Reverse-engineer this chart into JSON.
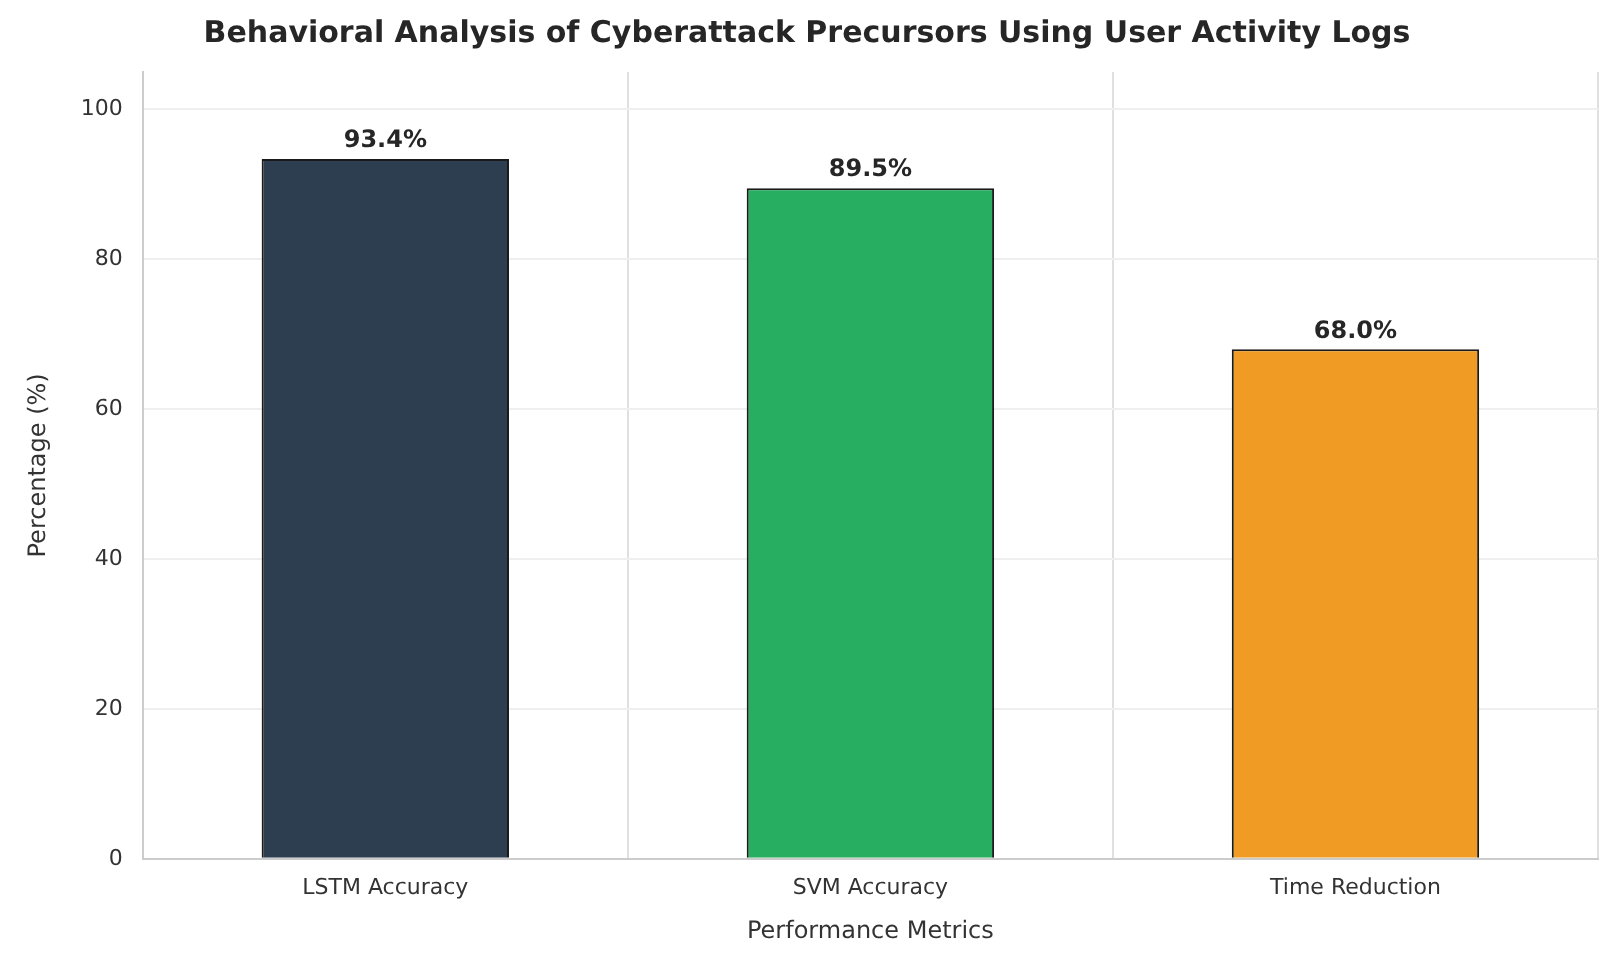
{
  "chart_data": {
    "type": "bar",
    "title": "Behavioral Analysis of Cyberattack Precursors Using User Activity Logs",
    "xlabel": "Performance Metrics",
    "ylabel": "Percentage (%)",
    "categories": [
      "LSTM Accuracy",
      "SVM Accuracy",
      "Time Reduction"
    ],
    "values": [
      93.4,
      89.5,
      68.0
    ],
    "colors": [
      "#2c3e50",
      "#27ae60",
      "#f09c24"
    ],
    "value_labels": [
      "93.4%",
      "89.5%",
      "68.0%"
    ],
    "ylim": [
      0,
      105
    ],
    "yticks": [
      0,
      20,
      40,
      60,
      80,
      100
    ],
    "grid": true
  }
}
